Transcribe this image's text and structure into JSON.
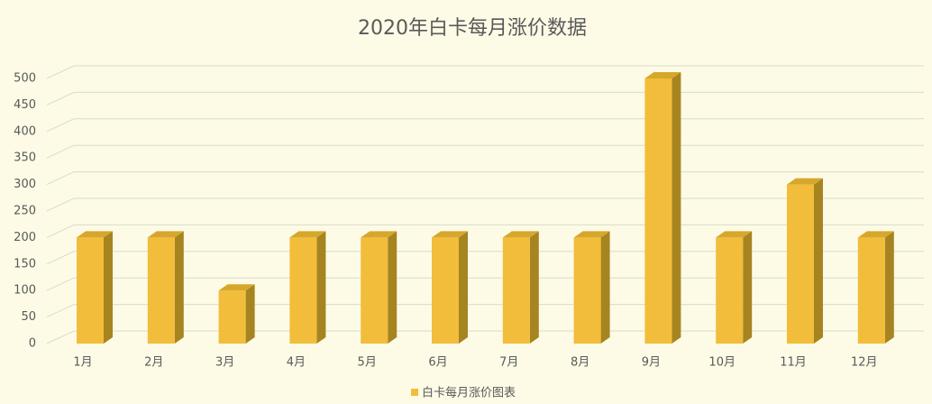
{
  "chart_data": {
    "type": "bar",
    "title": "2020年白卡每月涨价数据",
    "categories": [
      "1月",
      "2月",
      "3月",
      "4月",
      "5月",
      "6月",
      "7月",
      "8月",
      "9月",
      "10月",
      "11月",
      "12月"
    ],
    "series": [
      {
        "name": "白卡每月涨价图表",
        "color": "#f2bd3a",
        "values": [
          200,
          200,
          100,
          200,
          200,
          200,
          200,
          200,
          500,
          200,
          300,
          200
        ]
      }
    ],
    "ylim": [
      0,
      500
    ],
    "yticks": [
      0,
      50,
      100,
      150,
      200,
      250,
      300,
      350,
      400,
      450,
      500
    ],
    "grid": true,
    "legend": "bottom"
  }
}
